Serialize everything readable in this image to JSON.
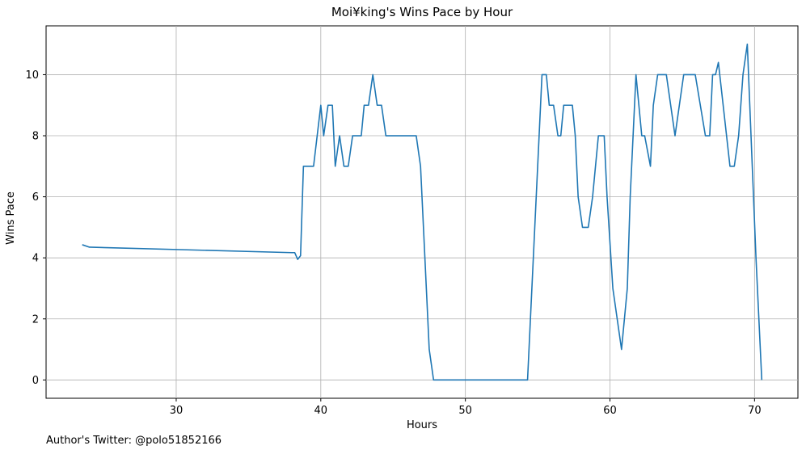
{
  "chart_data": {
    "type": "line",
    "title": "Moi¥king's Wins Pace by Hour",
    "xlabel": "Hours",
    "ylabel": "Wins Pace",
    "xlim": [
      21,
      73
    ],
    "ylim": [
      -0.6,
      11.6
    ],
    "xticks": [
      30,
      40,
      50,
      60,
      70
    ],
    "yticks": [
      0,
      2,
      4,
      6,
      8,
      10
    ],
    "grid": true,
    "series": [
      {
        "color": "#1f77b4",
        "x": [
          23.5,
          24,
          38,
          38.2,
          38.4,
          38.6,
          38.8,
          39,
          39.5,
          40,
          40.2,
          40.5,
          40.8,
          41,
          41.3,
          41.6,
          41.9,
          42.2,
          42.5,
          42.8,
          43,
          43.3,
          43.6,
          43.9,
          44.2,
          44.5,
          46.6,
          46.9,
          47.2,
          47.5,
          47.8,
          54.3,
          54.5,
          54.8,
          55.1,
          55.3,
          55.6,
          55.8,
          56.1,
          56.4,
          56.6,
          56.8,
          57.1,
          57.4,
          57.6,
          57.8,
          58.1,
          58.5,
          58.8,
          59.2,
          59.6,
          59.8,
          60.2,
          60.8,
          61.2,
          61.4,
          61.8,
          62.2,
          62.4,
          62.8,
          63,
          63.3,
          63.6,
          63.9,
          64.2,
          64.5,
          64.8,
          65.1,
          65.4,
          65.7,
          65.9,
          66.6,
          66.9,
          67.1,
          67.3,
          67.5,
          68.3,
          68.6,
          68.9,
          69.2,
          69.5,
          70.1,
          70.3,
          70.5
        ],
        "y": [
          4.43,
          4.35,
          4.17,
          4.17,
          3.95,
          4.07,
          7.0,
          7.0,
          7.0,
          9.0,
          8.0,
          9.0,
          9.0,
          7.0,
          8.0,
          7.0,
          7.0,
          8.0,
          8.0,
          8.0,
          9.0,
          9.0,
          10.0,
          9.0,
          9.0,
          8.0,
          8.0,
          7.0,
          4.0,
          1.0,
          0.0,
          0.0,
          2.0,
          5.0,
          8.0,
          10.0,
          10.0,
          9.0,
          9.0,
          8.0,
          8.0,
          9.0,
          9.0,
          9.0,
          8.0,
          6.0,
          5.0,
          5.0,
          6.0,
          8.0,
          8.0,
          6.0,
          3.0,
          1.0,
          3.0,
          6.0,
          10.0,
          8.0,
          8.0,
          7.0,
          9.0,
          10.0,
          10.0,
          10.0,
          9.0,
          8.0,
          9.0,
          10.0,
          10.0,
          10.0,
          10.0,
          8.0,
          8.0,
          10.0,
          10.0,
          10.4,
          7.0,
          7.0,
          8.0,
          10.0,
          11.0,
          4.0,
          2.0,
          0.0
        ]
      }
    ]
  },
  "footer": "Author's Twitter: @polo51852166"
}
